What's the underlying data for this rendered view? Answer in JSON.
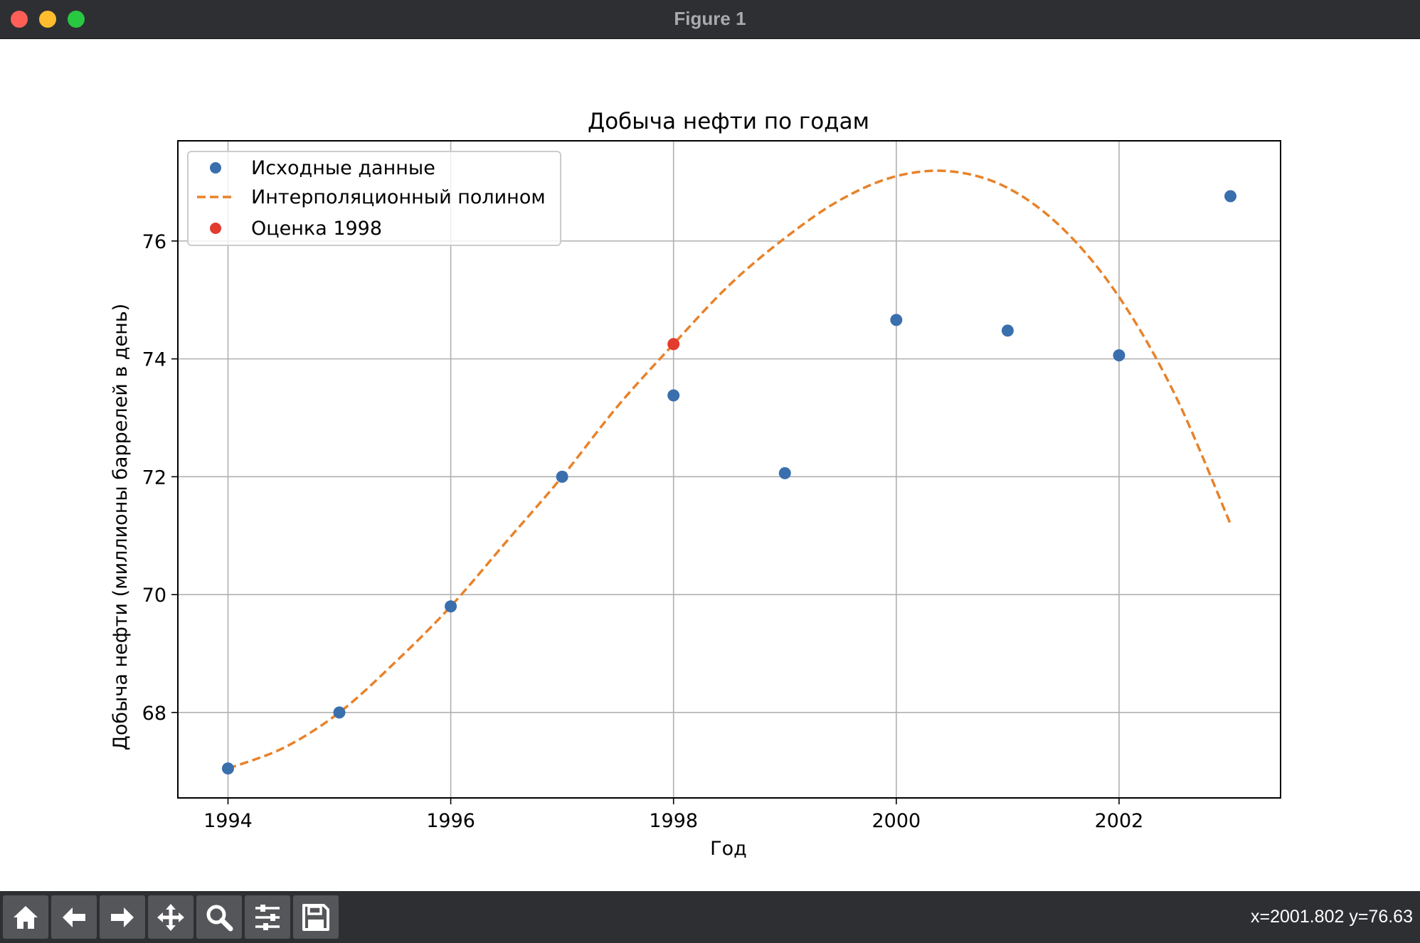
{
  "window": {
    "title": "Figure 1"
  },
  "toolbar": {
    "buttons": [
      {
        "icon": "home-icon"
      },
      {
        "icon": "back-arrow-icon"
      },
      {
        "icon": "forward-arrow-icon"
      },
      {
        "icon": "pan-icon"
      },
      {
        "icon": "zoom-icon"
      },
      {
        "icon": "configure-subplots-icon"
      },
      {
        "icon": "save-icon"
      }
    ],
    "coords": "x=2001.802 y=76.63"
  },
  "chart_data": {
    "type": "line",
    "title": "Добыча нефти по годам",
    "xlabel": "Год",
    "ylabel": "Добыча нефти (миллионы баррелей в день)",
    "xlim": [
      1993.55,
      2003.45
    ],
    "ylim": [
      66.55,
      77.7
    ],
    "xticks": [
      1994,
      1996,
      1998,
      2000,
      2002
    ],
    "yticks": [
      68,
      70,
      72,
      74,
      76
    ],
    "grid": true,
    "legend_position": "upper left",
    "series": [
      {
        "name": "Исходные данные",
        "kind": "scatter",
        "color": "#3a6fad",
        "x": [
          1994,
          1995,
          1996,
          1997,
          1998,
          1999,
          2000,
          2001,
          2002,
          2003
        ],
        "y": [
          67.05,
          68.0,
          69.8,
          72.0,
          73.38,
          72.06,
          74.66,
          74.48,
          74.06,
          76.76
        ]
      },
      {
        "name": "Интерполяционный полином",
        "kind": "line",
        "style": "dashed",
        "color": "#e8822a",
        "x": [
          1994,
          1994.5,
          1995,
          1995.5,
          1996,
          1996.5,
          1997,
          1997.5,
          1998,
          1998.5,
          1999,
          1999.5,
          2000,
          2000.5,
          2001,
          2001.5,
          2002,
          2002.5,
          2003
        ],
        "y": [
          67.05,
          67.4,
          68.0,
          68.85,
          69.8,
          70.9,
          72.0,
          73.2,
          74.25,
          75.25,
          76.05,
          76.7,
          77.1,
          77.18,
          76.9,
          76.2,
          75.05,
          73.4,
          71.2
        ]
      },
      {
        "name": "Оценка 1998",
        "kind": "scatter",
        "color": "#e33b2e",
        "x": [
          1998
        ],
        "y": [
          74.25
        ]
      }
    ]
  }
}
